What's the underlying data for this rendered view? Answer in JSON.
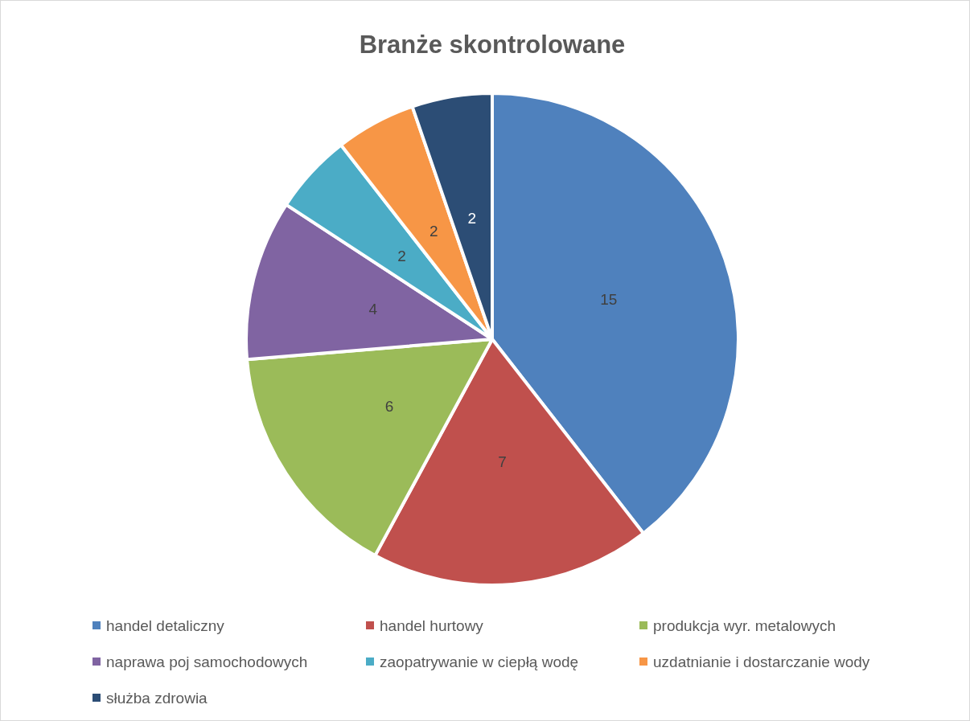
{
  "chart_data": {
    "type": "pie",
    "title": "Branże skontrolowane",
    "categories": [
      "handel detaliczny",
      "handel hurtowy",
      "produkcja wyr. metalowych",
      "naprawa poj samochodowych",
      "zaopatrywanie w ciepłą wodę",
      "uzdatnianie i dostarczanie wody",
      "służba zdrowia"
    ],
    "values": [
      15,
      7,
      6,
      4,
      2,
      2,
      2
    ],
    "colors": [
      "#4f81bd",
      "#c0504d",
      "#9bbb59",
      "#8064a2",
      "#4bacc6",
      "#f79646",
      "#2c4d75"
    ],
    "data_labels": true,
    "legend": "bottom"
  }
}
